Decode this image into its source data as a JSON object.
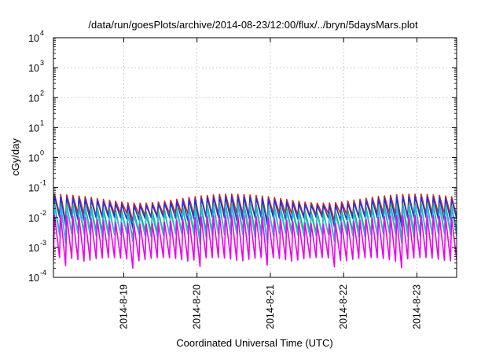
{
  "chart_data": {
    "type": "line",
    "title": "/data/run/goesPlots/archive/2014-08-23/12:00/flux/../bryn/5daysMars.plot",
    "xlabel": "Coordinated Universal Time (UTC)",
    "ylabel": "cGy/day",
    "y_scale": "log",
    "ylim": [
      0.0001,
      10000
    ],
    "y_ticks": [
      {
        "base": "10",
        "exp": "-4",
        "value": 0.0001
      },
      {
        "base": "10",
        "exp": "-3",
        "value": 0.001
      },
      {
        "base": "10",
        "exp": "-2",
        "value": 0.01
      },
      {
        "base": "10",
        "exp": "-1",
        "value": 0.1
      },
      {
        "base": "10",
        "exp": "0",
        "value": 1
      },
      {
        "base": "10",
        "exp": "1",
        "value": 10
      },
      {
        "base": "10",
        "exp": "2",
        "value": 100
      },
      {
        "base": "10",
        "exp": "3",
        "value": 1000
      },
      {
        "base": "10",
        "exp": "4",
        "value": 10000
      }
    ],
    "xlim": [
      "2014-08-18 01:00",
      "2014-08-23 13:00"
    ],
    "x_ticks": [
      {
        "label": "2014-8-19",
        "date": "2014-08-19"
      },
      {
        "label": "2014-8-20",
        "date": "2014-08-20"
      },
      {
        "label": "2014-8-21",
        "date": "2014-08-21"
      },
      {
        "label": "2014-8-22",
        "date": "2014-08-22"
      },
      {
        "label": "2014-8-23",
        "date": "2014-08-23"
      }
    ],
    "grid": true,
    "legend": false,
    "sawtooth_period_hours": 2,
    "series": [
      {
        "color": "#dd2222",
        "peak": 0.06,
        "trough": 0.012
      },
      {
        "color": "#2233dd",
        "peak": 0.05,
        "trough": 0.009
      },
      {
        "color": "#1aa84a",
        "peak": 0.03,
        "trough": 0.003
      },
      {
        "color": "#22bbdd",
        "peak": 0.025,
        "trough": 0.0025
      },
      {
        "color": "#ee00ee",
        "peak": 0.012,
        "trough": 0.0004
      }
    ]
  }
}
